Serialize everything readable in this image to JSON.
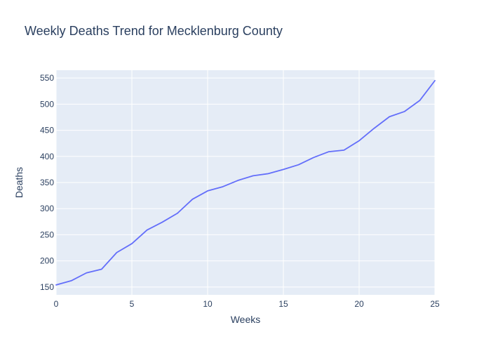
{
  "colors": {
    "plot_background": "#e5ecf6",
    "gridline": "#ffffff",
    "line": "#636efa",
    "text": "#2a3f5f"
  },
  "chart_data": {
    "type": "line",
    "title": "Weekly Deaths Trend for Mecklenburg County",
    "xlabel": "Weeks",
    "ylabel": "Deaths",
    "xlim": [
      0,
      25
    ],
    "ylim": [
      135,
      565
    ],
    "x_ticks": [
      0,
      5,
      10,
      15,
      20,
      25
    ],
    "y_ticks": [
      150,
      200,
      250,
      300,
      350,
      400,
      450,
      500,
      550
    ],
    "grid": true,
    "series": [
      {
        "x": [
          0,
          1,
          2,
          3,
          4,
          5,
          6,
          7,
          8,
          9,
          10,
          11,
          12,
          13,
          14,
          15,
          16,
          17,
          18,
          19,
          20,
          21,
          22,
          23,
          24,
          25
        ],
        "y": [
          154,
          162,
          177,
          184,
          216,
          233,
          259,
          274,
          291,
          318,
          334,
          342,
          354,
          363,
          367,
          375,
          384,
          398,
          409,
          412,
          430,
          454,
          476,
          486,
          507,
          545
        ]
      }
    ]
  }
}
